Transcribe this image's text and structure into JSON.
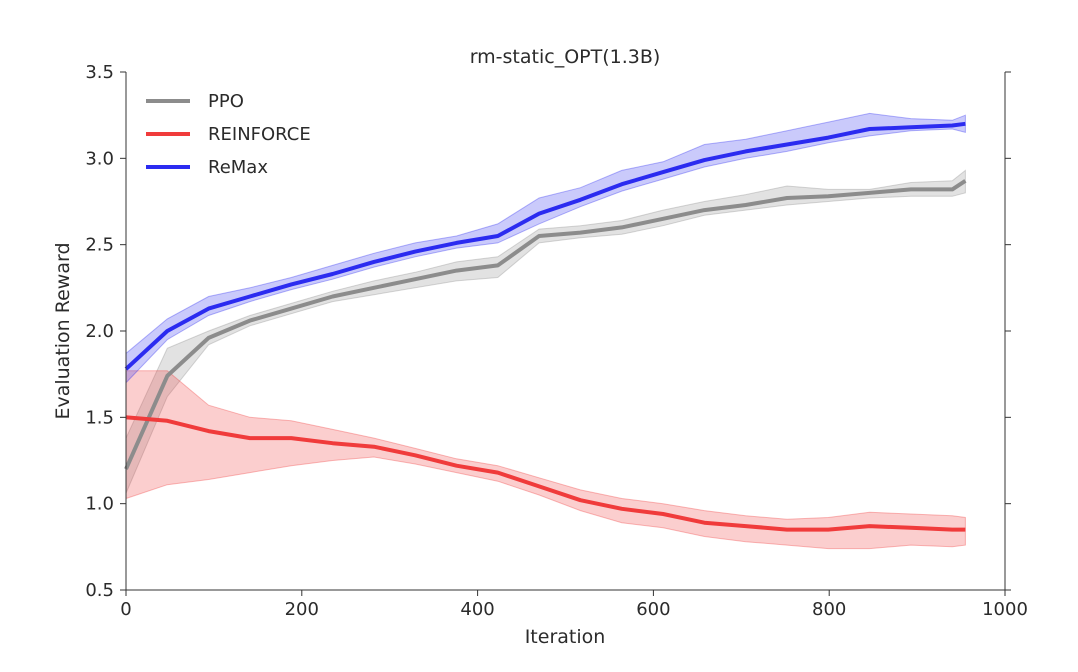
{
  "chart_data": {
    "type": "line",
    "title": "rm-static_OPT(1.3B)",
    "xlabel": "Iteration",
    "ylabel": "Evaluation Reward",
    "xlim": [
      0,
      1000
    ],
    "ylim": [
      0.5,
      3.5
    ],
    "x_ticks": [
      "0",
      "200",
      "400",
      "600",
      "800",
      "1000"
    ],
    "y_ticks": [
      "0.5",
      "1.0",
      "1.5",
      "2.0",
      "2.5",
      "3.0",
      "3.5"
    ],
    "x_tick_values": [
      0,
      200,
      400,
      600,
      800,
      1000
    ],
    "y_tick_values": [
      0.5,
      1.0,
      1.5,
      2.0,
      2.5,
      3.0,
      3.5
    ],
    "grid": false,
    "legend_position": "top-left",
    "series": [
      {
        "name": "PPO",
        "color": "#8c8c8c",
        "x": [
          0,
          47,
          94,
          141,
          188,
          235,
          282,
          329,
          376,
          423,
          470,
          517,
          564,
          611,
          658,
          705,
          752,
          799,
          846,
          893,
          940,
          955
        ],
        "values": [
          1.2,
          1.74,
          1.96,
          2.06,
          2.13,
          2.2,
          2.25,
          2.3,
          2.35,
          2.38,
          2.55,
          2.57,
          2.6,
          2.65,
          2.7,
          2.73,
          2.77,
          2.78,
          2.8,
          2.82,
          2.82,
          2.87
        ],
        "lower": [
          1.06,
          1.62,
          1.92,
          2.03,
          2.1,
          2.17,
          2.21,
          2.25,
          2.29,
          2.31,
          2.51,
          2.54,
          2.56,
          2.61,
          2.67,
          2.7,
          2.73,
          2.75,
          2.77,
          2.78,
          2.78,
          2.8
        ],
        "upper": [
          1.38,
          1.9,
          2.0,
          2.09,
          2.16,
          2.23,
          2.29,
          2.34,
          2.4,
          2.43,
          2.59,
          2.61,
          2.64,
          2.7,
          2.75,
          2.79,
          2.84,
          2.82,
          2.82,
          2.86,
          2.87,
          2.93
        ]
      },
      {
        "name": "REINFORCE",
        "color": "#f03b3b",
        "x": [
          0,
          47,
          94,
          141,
          188,
          235,
          282,
          329,
          376,
          423,
          470,
          517,
          564,
          611,
          658,
          705,
          752,
          799,
          846,
          893,
          940,
          955
        ],
        "values": [
          1.5,
          1.48,
          1.42,
          1.38,
          1.38,
          1.35,
          1.33,
          1.28,
          1.22,
          1.18,
          1.1,
          1.02,
          0.97,
          0.94,
          0.89,
          0.87,
          0.85,
          0.85,
          0.87,
          0.86,
          0.85,
          0.85
        ],
        "lower": [
          1.03,
          1.11,
          1.14,
          1.18,
          1.22,
          1.25,
          1.27,
          1.23,
          1.18,
          1.13,
          1.05,
          0.96,
          0.89,
          0.86,
          0.81,
          0.78,
          0.76,
          0.74,
          0.74,
          0.76,
          0.75,
          0.76
        ],
        "upper": [
          1.77,
          1.77,
          1.57,
          1.5,
          1.48,
          1.43,
          1.38,
          1.32,
          1.26,
          1.22,
          1.15,
          1.08,
          1.03,
          1.0,
          0.96,
          0.93,
          0.91,
          0.92,
          0.95,
          0.94,
          0.93,
          0.92
        ]
      },
      {
        "name": "ReMax",
        "color": "#2b2bf0",
        "x": [
          0,
          47,
          94,
          141,
          188,
          235,
          282,
          329,
          376,
          423,
          470,
          517,
          564,
          611,
          658,
          705,
          752,
          799,
          846,
          893,
          940,
          955
        ],
        "values": [
          1.78,
          2.0,
          2.13,
          2.2,
          2.27,
          2.33,
          2.4,
          2.46,
          2.51,
          2.55,
          2.68,
          2.76,
          2.85,
          2.92,
          2.99,
          3.04,
          3.08,
          3.12,
          3.17,
          3.18,
          3.19,
          3.2
        ],
        "lower": [
          1.7,
          1.95,
          2.09,
          2.17,
          2.24,
          2.3,
          2.37,
          2.43,
          2.48,
          2.51,
          2.62,
          2.72,
          2.81,
          2.88,
          2.95,
          3.0,
          3.04,
          3.09,
          3.13,
          3.16,
          3.17,
          3.15
        ],
        "upper": [
          1.87,
          2.07,
          2.2,
          2.25,
          2.31,
          2.38,
          2.45,
          2.51,
          2.55,
          2.62,
          2.77,
          2.83,
          2.93,
          2.98,
          3.08,
          3.11,
          3.16,
          3.21,
          3.26,
          3.23,
          3.22,
          3.25
        ]
      }
    ]
  }
}
